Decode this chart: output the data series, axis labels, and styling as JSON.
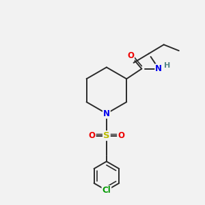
{
  "background_color": "#f2f2f2",
  "bond_color": "#2a2a2a",
  "bond_width": 1.4,
  "atom_colors": {
    "N": "#0000ee",
    "O": "#ee0000",
    "S": "#bbbb00",
    "Cl": "#009900",
    "H": "#558888",
    "C": "#2a2a2a"
  },
  "font_size": 8.5
}
